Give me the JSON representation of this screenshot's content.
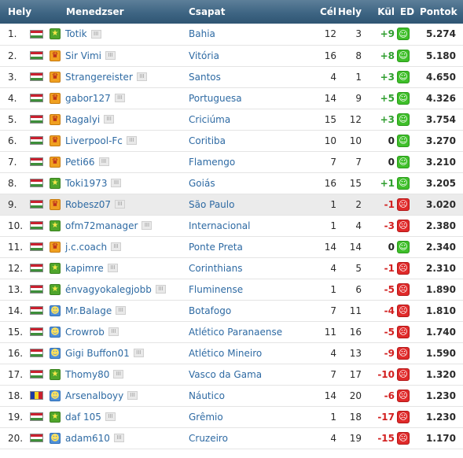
{
  "header": {
    "pos": "Hely",
    "manager": "Menedzser",
    "team": "Csapat",
    "goals": "Cél",
    "place": "Hely",
    "diff": "Kül",
    "ed": "ED",
    "points": "Pontok"
  },
  "info_icon": "III",
  "rows": [
    {
      "pos": "1.",
      "flag": "hungary-flag-icon",
      "badge": "star",
      "manager": "Totik",
      "team": "Bahia",
      "goals": "12",
      "place": "3",
      "diff": "+9",
      "mood": "happy",
      "points": "5.274"
    },
    {
      "pos": "2.",
      "flag": "hungary-flag-icon",
      "badge": "crown",
      "manager": "Sir Vimi",
      "team": "Vitória",
      "goals": "16",
      "place": "8",
      "diff": "+8",
      "mood": "happy",
      "points": "5.180"
    },
    {
      "pos": "3.",
      "flag": "hungary-flag-icon",
      "badge": "crown",
      "manager": "Strangereister",
      "team": "Santos",
      "goals": "4",
      "place": "1",
      "diff": "+3",
      "mood": "happy",
      "points": "4.650"
    },
    {
      "pos": "4.",
      "flag": "hungary-flag-icon",
      "badge": "crown",
      "manager": "gabor127",
      "team": "Portuguesa",
      "goals": "14",
      "place": "9",
      "diff": "+5",
      "mood": "happy",
      "points": "4.326"
    },
    {
      "pos": "5.",
      "flag": "hungary-flag-icon",
      "badge": "crown",
      "manager": "Ragalyi",
      "team": "Criciúma",
      "goals": "15",
      "place": "12",
      "diff": "+3",
      "mood": "happy",
      "points": "3.754"
    },
    {
      "pos": "6.",
      "flag": "hungary-flag-icon",
      "badge": "crown",
      "manager": "Liverpool-Fc",
      "team": "Coritiba",
      "goals": "10",
      "place": "10",
      "diff": "0",
      "mood": "happy",
      "points": "3.270"
    },
    {
      "pos": "7.",
      "flag": "hungary-flag-icon",
      "badge": "crown",
      "manager": "Peti66",
      "team": "Flamengo",
      "goals": "7",
      "place": "7",
      "diff": "0",
      "mood": "happy",
      "points": "3.210"
    },
    {
      "pos": "8.",
      "flag": "hungary-flag-icon",
      "badge": "star",
      "manager": "Toki1973",
      "team": "Goiás",
      "goals": "16",
      "place": "15",
      "diff": "+1",
      "mood": "happy",
      "points": "3.205"
    },
    {
      "pos": "9.",
      "flag": "hungary-flag-icon",
      "badge": "crown",
      "manager": "Robesz07",
      "team": "São Paulo",
      "goals": "1",
      "place": "2",
      "diff": "-1",
      "mood": "sad",
      "points": "3.020",
      "highlight": true
    },
    {
      "pos": "10.",
      "flag": "hungary-flag-icon",
      "badge": "star",
      "manager": "ofm72manager",
      "team": "Internacional",
      "goals": "1",
      "place": "4",
      "diff": "-3",
      "mood": "sad",
      "points": "2.380"
    },
    {
      "pos": "11.",
      "flag": "hungary-flag-icon",
      "badge": "crown",
      "manager": "j.c.coach",
      "team": "Ponte Preta",
      "goals": "14",
      "place": "14",
      "diff": "0",
      "mood": "happy",
      "points": "2.340"
    },
    {
      "pos": "12.",
      "flag": "hungary-flag-icon",
      "badge": "star",
      "manager": "kapimre",
      "team": "Corinthians",
      "goals": "4",
      "place": "5",
      "diff": "-1",
      "mood": "sad",
      "points": "2.310"
    },
    {
      "pos": "13.",
      "flag": "hungary-flag-icon",
      "badge": "star",
      "manager": "énvagyokalegjobb",
      "team": "Fluminense",
      "goals": "1",
      "place": "6",
      "diff": "-5",
      "mood": "sad",
      "points": "1.890"
    },
    {
      "pos": "14.",
      "flag": "hungary-flag-icon",
      "badge": "face",
      "manager": "Mr.Balage",
      "team": "Botafogo",
      "goals": "7",
      "place": "11",
      "diff": "-4",
      "mood": "sad",
      "points": "1.810"
    },
    {
      "pos": "15.",
      "flag": "hungary-flag-icon",
      "badge": "face",
      "manager": "Crowrob",
      "team": "Atlético Paranaense",
      "goals": "11",
      "place": "16",
      "diff": "-5",
      "mood": "sad",
      "points": "1.740"
    },
    {
      "pos": "16.",
      "flag": "hungary-flag-icon",
      "badge": "face",
      "manager": "Gigi Buffon01",
      "team": "Atlético Mineiro",
      "goals": "4",
      "place": "13",
      "diff": "-9",
      "mood": "sad",
      "points": "1.590"
    },
    {
      "pos": "17.",
      "flag": "hungary-flag-icon",
      "badge": "star",
      "manager": "Thomy80",
      "team": "Vasco da Gama",
      "goals": "7",
      "place": "17",
      "diff": "-10",
      "mood": "sad",
      "points": "1.320"
    },
    {
      "pos": "18.",
      "flag": "romania-flag-icon",
      "badge": "face",
      "manager": "Arsenalboyy",
      "team": "Náutico",
      "goals": "14",
      "place": "20",
      "diff": "-6",
      "mood": "sad",
      "points": "1.230"
    },
    {
      "pos": "19.",
      "flag": "hungary-flag-icon",
      "badge": "star",
      "manager": "daf 105",
      "team": "Grêmio",
      "goals": "1",
      "place": "18",
      "diff": "-17",
      "mood": "sad",
      "points": "1.230"
    },
    {
      "pos": "20.",
      "flag": "hungary-flag-icon",
      "badge": "face",
      "manager": "adam610",
      "team": "Cruzeiro",
      "goals": "4",
      "place": "19",
      "diff": "-15",
      "mood": "sad",
      "points": "1.170"
    }
  ]
}
